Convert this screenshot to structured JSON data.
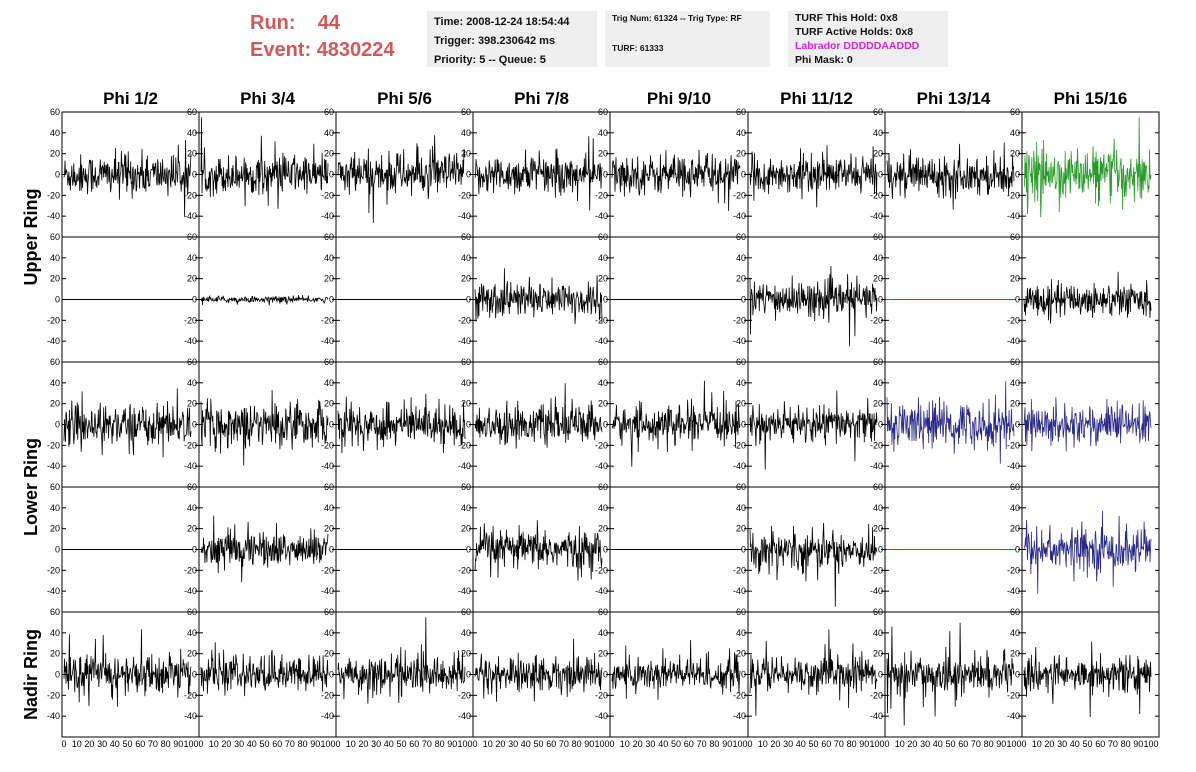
{
  "header": {
    "run_label": "Run:",
    "run_value": "44",
    "event_label": "Event:",
    "event_value": "4830224",
    "time_line": "Time: 2008-12-24 18:54:44",
    "trigger_line": "Trigger: 398.230642 ms",
    "priority_line": "Priority: 5 -- Queue: 5",
    "trig_line": "Trig Num: 61324 -- Trig Type: RF",
    "turf_line": "TURF: 61333",
    "turf_hold": "TURF This Hold: 0x8",
    "turf_active": "TURF Active Holds: 0x8",
    "labrador": "Labrador DDDDDAADDD",
    "phi_mask": "Phi Mask: 0"
  },
  "colors": {
    "run_text": "#d05a5a",
    "labrador_text": "#e020e0",
    "trace_default": "#000000",
    "trace_green": "#2a9a2a",
    "trace_blue": "#2a2a8a",
    "trace_flat_red": "#c03030",
    "panel_background": "#efefef"
  },
  "chart_data": {
    "type": "line",
    "columns": [
      "Phi 1/2",
      "Phi 3/4",
      "Phi 5/6",
      "Phi 7/8",
      "Phi 9/10",
      "Phi 11/12",
      "Phi 13/14",
      "Phi 15/16"
    ],
    "ring_labels": [
      {
        "text": "Upper Ring",
        "rows": [
          0,
          1
        ]
      },
      {
        "text": "Lower Ring",
        "rows": [
          2,
          3
        ]
      },
      {
        "text": "Nadir Ring",
        "rows": [
          4
        ]
      }
    ],
    "ylim": [
      -60,
      60
    ],
    "xlim": [
      0,
      100
    ],
    "y_ticks": [
      -60,
      -40,
      -20,
      0,
      20,
      40,
      60
    ],
    "y_tick_labels": [
      "-40",
      "-20",
      "0",
      "20",
      "40",
      "60"
    ],
    "x_tick_labels": [
      "0",
      "10",
      "20",
      "30",
      "40",
      "50",
      "60",
      "70",
      "80",
      "90",
      "100"
    ],
    "panels": [
      [
        {
          "style": "noise",
          "amp": 16,
          "color": "trace_default"
        },
        {
          "style": "noise",
          "amp": 15,
          "color": "trace_default"
        },
        {
          "style": "noise",
          "amp": 17,
          "color": "trace_default"
        },
        {
          "style": "noise",
          "amp": 15,
          "color": "trace_default"
        },
        {
          "style": "noise",
          "amp": 15,
          "color": "trace_default"
        },
        {
          "style": "noise",
          "amp": 14,
          "color": "trace_default"
        },
        {
          "style": "noise",
          "amp": 15,
          "color": "trace_default"
        },
        {
          "style": "noise",
          "amp": 20,
          "color": "trace_green"
        }
      ],
      [
        {
          "style": "flat",
          "amp": 0,
          "color": "trace_default"
        },
        {
          "style": "noise",
          "amp": 2.5,
          "color": "trace_default"
        },
        {
          "style": "flat",
          "amp": 0,
          "color": "trace_default"
        },
        {
          "style": "noise",
          "amp": 14,
          "color": "trace_default"
        },
        {
          "style": "flat",
          "amp": 0,
          "color": "trace_default"
        },
        {
          "style": "noise",
          "amp": 14,
          "color": "trace_default"
        },
        {
          "style": "flat",
          "amp": 0,
          "color": "trace_flat_red"
        },
        {
          "style": "noise",
          "amp": 13,
          "color": "trace_default"
        }
      ],
      [
        {
          "style": "noise",
          "amp": 16,
          "color": "trace_default"
        },
        {
          "style": "noise",
          "amp": 17,
          "color": "trace_default"
        },
        {
          "style": "noise",
          "amp": 16,
          "color": "trace_default"
        },
        {
          "style": "noise",
          "amp": 14,
          "color": "trace_default"
        },
        {
          "style": "noise",
          "amp": 14,
          "color": "trace_default"
        },
        {
          "style": "noise",
          "amp": 14,
          "color": "trace_default"
        },
        {
          "style": "noise",
          "amp": 18,
          "color": "trace_blue"
        },
        {
          "style": "noise",
          "amp": 16,
          "color": "trace_blue"
        }
      ],
      [
        {
          "style": "flat",
          "amp": 0,
          "color": "trace_default"
        },
        {
          "style": "noise",
          "amp": 14,
          "color": "trace_default"
        },
        {
          "style": "flat",
          "amp": 0,
          "color": "trace_default"
        },
        {
          "style": "noise",
          "amp": 15,
          "color": "trace_default"
        },
        {
          "style": "flat",
          "amp": 0,
          "color": "trace_default"
        },
        {
          "style": "noise",
          "amp": 15,
          "color": "trace_default"
        },
        {
          "style": "flat",
          "amp": 0,
          "color": "trace_flat_red"
        },
        {
          "style": "noise",
          "amp": 17,
          "color": "trace_blue"
        }
      ],
      [
        {
          "style": "noise",
          "amp": 16,
          "color": "trace_default"
        },
        {
          "style": "noise",
          "amp": 14,
          "color": "trace_default"
        },
        {
          "style": "noise",
          "amp": 15,
          "color": "trace_default"
        },
        {
          "style": "noise",
          "amp": 14,
          "color": "trace_default"
        },
        {
          "style": "noise",
          "amp": 14,
          "color": "trace_default"
        },
        {
          "style": "noise",
          "amp": 14,
          "color": "trace_default"
        },
        {
          "style": "noise",
          "amp": 15,
          "color": "trace_default"
        },
        {
          "style": "noise",
          "amp": 14,
          "color": "trace_default"
        }
      ]
    ]
  }
}
